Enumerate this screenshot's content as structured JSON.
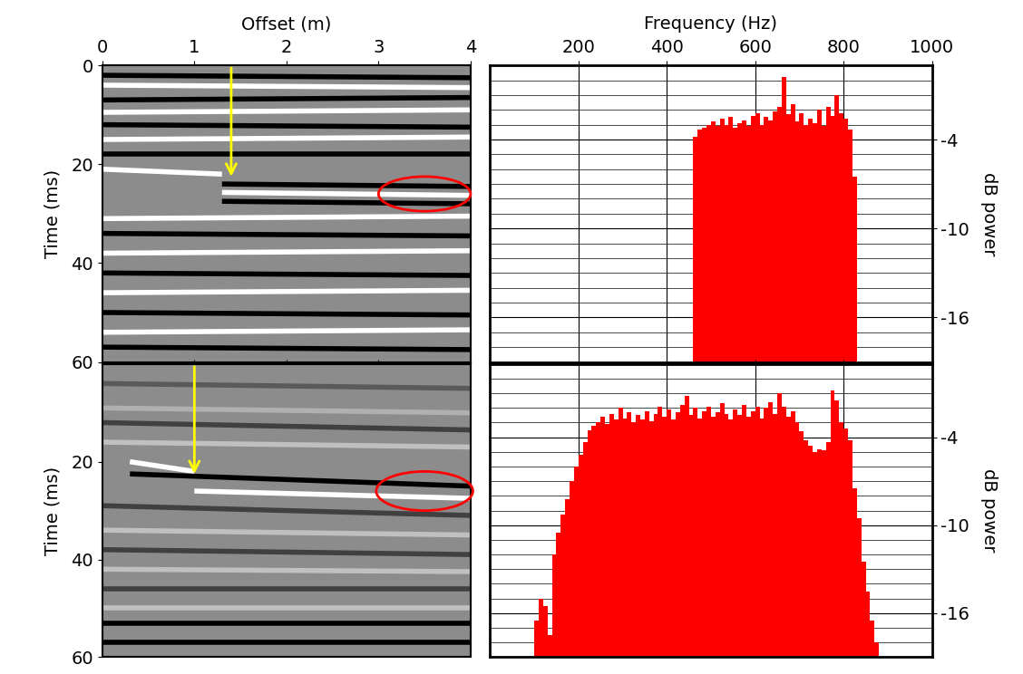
{
  "chart_data": [
    {
      "type": "seismic",
      "x_label": "Offset (m)",
      "y_label": "Time (ms)",
      "xlim": [
        0,
        4
      ],
      "ylim": [
        60,
        0
      ],
      "xticks": [
        0,
        1,
        2,
        3,
        4
      ],
      "yticks": [
        0,
        20,
        40,
        60
      ],
      "color": "#8c8c8c",
      "grid": false,
      "tick_labels": true,
      "events": [
        {
          "x": [
            0,
            4
          ],
          "y": [
            2,
            2.5
          ],
          "color": "#000000"
        },
        {
          "x": [
            0,
            4
          ],
          "y": [
            4,
            4.5
          ],
          "color": "#ffffff"
        },
        {
          "x": [
            0,
            4
          ],
          "y": [
            7,
            6.5
          ],
          "color": "#000000"
        },
        {
          "x": [
            0,
            4
          ],
          "y": [
            9.5,
            9
          ],
          "color": "#ffffff"
        },
        {
          "x": [
            0,
            4
          ],
          "y": [
            12,
            12.5
          ],
          "color": "#000000"
        },
        {
          "x": [
            0,
            4
          ],
          "y": [
            15,
            14.5
          ],
          "color": "#ffffff"
        },
        {
          "x": [
            0,
            4
          ],
          "y": [
            18,
            18
          ],
          "color": "#000000"
        },
        {
          "x": [
            0,
            1.3
          ],
          "y": [
            21,
            22
          ],
          "color": "#ffffff"
        },
        {
          "x": [
            1.3,
            4
          ],
          "y": [
            24,
            24.5
          ],
          "color": "#000000"
        },
        {
          "x": [
            1.3,
            4
          ],
          "y": [
            25.7,
            26.3
          ],
          "color": "#ffffff"
        },
        {
          "x": [
            1.3,
            4
          ],
          "y": [
            27.5,
            28
          ],
          "color": "#000000"
        },
        {
          "x": [
            0,
            4
          ],
          "y": [
            31,
            30.5
          ],
          "color": "#ffffff"
        },
        {
          "x": [
            0,
            4
          ],
          "y": [
            34,
            34.5
          ],
          "color": "#000000"
        },
        {
          "x": [
            0,
            4
          ],
          "y": [
            38,
            37.5
          ],
          "color": "#ffffff"
        },
        {
          "x": [
            0,
            4
          ],
          "y": [
            42,
            42.5
          ],
          "color": "#000000"
        },
        {
          "x": [
            0,
            4
          ],
          "y": [
            46,
            45.5
          ],
          "color": "#ffffff"
        },
        {
          "x": [
            0,
            4
          ],
          "y": [
            50,
            50.5
          ],
          "color": "#000000"
        },
        {
          "x": [
            0,
            4
          ],
          "y": [
            54,
            53.5
          ],
          "color": "#ffffff"
        },
        {
          "x": [
            0,
            4
          ],
          "y": [
            57,
            57.5
          ],
          "color": "#000000"
        }
      ],
      "annotations": [
        {
          "type": "arrow",
          "x": 1.4,
          "y": [
            0,
            23
          ],
          "color": "#ffff00"
        },
        {
          "type": "ellipse",
          "x": 3.5,
          "y": 26,
          "width": 1.0,
          "height": 7,
          "color": "#ff0000"
        }
      ]
    },
    {
      "type": "histogram",
      "x_label": "Frequency (Hz)",
      "y_label": "dB power",
      "xlim": [
        0,
        1000
      ],
      "ylim": [
        -19,
        1
      ],
      "xticks": [
        200,
        400,
        600,
        800,
        1000
      ],
      "yticks": [
        -4,
        -10,
        -16
      ],
      "color": "#ff0000",
      "grid": true,
      "tick_labels": true,
      "bins": [
        460,
        470,
        480,
        490,
        500,
        510,
        520,
        530,
        540,
        550,
        560,
        570,
        580,
        590,
        600,
        610,
        620,
        630,
        640,
        650,
        660,
        670,
        680,
        690,
        700,
        710,
        720,
        730,
        740,
        750,
        760,
        770,
        780,
        790,
        800,
        810,
        820,
        830
      ],
      "values": [
        -3.8,
        -3.3,
        -3.2,
        -3.0,
        -2.8,
        -3.1,
        -2.6,
        -3.0,
        -2.5,
        -3.2,
        -2.9,
        -2.7,
        -3.1,
        -2.4,
        -2.2,
        -3.0,
        -2.5,
        -2.7,
        -2.1,
        -1.8,
        0.2,
        -2.3,
        -1.6,
        -2.8,
        -2.2,
        -3.0,
        -2.6,
        -2.9,
        -2.0,
        -3.1,
        -1.8,
        -2.4,
        -1.0,
        -2.2,
        -2.6,
        -3.3,
        -6.5
      ]
    },
    {
      "type": "seismic",
      "y_label": "Time (ms)",
      "xlim": [
        0,
        4
      ],
      "ylim": [
        60,
        0
      ],
      "xticks": [
        0,
        1,
        2,
        3,
        4
      ],
      "yticks": [
        20,
        40,
        60
      ],
      "color": "#8c8c8c",
      "grid": false,
      "tick_labels": "y",
      "events": [
        {
          "x": [
            0,
            4
          ],
          "y": [
            4,
            5
          ],
          "color": "#5a5a5a"
        },
        {
          "x": [
            0,
            4
          ],
          "y": [
            9,
            10
          ],
          "color": "#b0b0b0"
        },
        {
          "x": [
            0,
            4
          ],
          "y": [
            12,
            13.5
          ],
          "color": "#404040"
        },
        {
          "x": [
            0,
            4
          ],
          "y": [
            16,
            17
          ],
          "color": "#c0c0c0"
        },
        {
          "x": [
            0.3,
            1.0
          ],
          "y": [
            20,
            22
          ],
          "color": "#ffffff"
        },
        {
          "x": [
            0.3,
            4
          ],
          "y": [
            22.5,
            25
          ],
          "color": "#000000"
        },
        {
          "x": [
            1.0,
            4
          ],
          "y": [
            26,
            27.5
          ],
          "color": "#ffffff"
        },
        {
          "x": [
            0,
            4
          ],
          "y": [
            29,
            31
          ],
          "color": "#404040"
        },
        {
          "x": [
            0,
            4
          ],
          "y": [
            34,
            35
          ],
          "color": "#c0c0c0"
        },
        {
          "x": [
            0,
            4
          ],
          "y": [
            38,
            39
          ],
          "color": "#404040"
        },
        {
          "x": [
            0,
            4
          ],
          "y": [
            42,
            42.5
          ],
          "color": "#c0c0c0"
        },
        {
          "x": [
            0,
            4
          ],
          "y": [
            46,
            46
          ],
          "color": "#404040"
        },
        {
          "x": [
            0,
            4
          ],
          "y": [
            50,
            50
          ],
          "color": "#c0c0c0"
        },
        {
          "x": [
            0,
            4
          ],
          "y": [
            53,
            53
          ],
          "color": "#000000"
        },
        {
          "x": [
            0,
            4
          ],
          "y": [
            57,
            57
          ],
          "color": "#000000"
        }
      ],
      "annotations": [
        {
          "type": "arrow",
          "x": 1.0,
          "y": [
            0,
            23
          ],
          "color": "#ffff00"
        },
        {
          "type": "ellipse",
          "x": 3.5,
          "y": 26,
          "width": 1.05,
          "height": 8,
          "color": "#ff0000"
        }
      ]
    },
    {
      "type": "histogram",
      "y_label": "dB power",
      "xlim": [
        0,
        1000
      ],
      "ylim": [
        -19,
        1
      ],
      "xticks": [
        200,
        400,
        600,
        800,
        1000
      ],
      "yticks": [
        -4,
        -10,
        -16
      ],
      "color": "#ff0000",
      "grid": true,
      "tick_labels": "y",
      "bins": [
        100,
        110,
        120,
        130,
        140,
        150,
        160,
        170,
        180,
        190,
        200,
        210,
        220,
        230,
        240,
        250,
        260,
        270,
        280,
        290,
        300,
        310,
        320,
        330,
        340,
        350,
        360,
        370,
        380,
        390,
        400,
        410,
        420,
        430,
        440,
        450,
        460,
        470,
        480,
        490,
        500,
        510,
        520,
        530,
        540,
        550,
        560,
        570,
        580,
        590,
        600,
        610,
        620,
        630,
        640,
        650,
        660,
        670,
        680,
        690,
        700,
        710,
        720,
        730,
        740,
        750,
        760,
        770,
        780,
        790,
        800,
        810,
        820,
        830,
        840,
        850,
        860,
        870,
        880
      ],
      "values": [
        -16.5,
        -15.0,
        -15.5,
        -17.5,
        -12.0,
        -10.5,
        -9.3,
        -8.2,
        -7.0,
        -6.0,
        -5.2,
        -4.3,
        -3.5,
        -3.2,
        -3.0,
        -2.6,
        -3.1,
        -2.4,
        -2.8,
        -2.0,
        -2.7,
        -2.3,
        -3.0,
        -2.5,
        -2.8,
        -2.2,
        -2.9,
        -2.4,
        -1.9,
        -2.6,
        -2.1,
        -2.8,
        -2.3,
        -1.8,
        -1.2,
        -2.5,
        -2.0,
        -2.7,
        -2.2,
        -1.9,
        -2.6,
        -2.3,
        -1.7,
        -2.4,
        -2.8,
        -2.1,
        -2.5,
        -1.8,
        -2.6,
        -2.2,
        -1.9,
        -2.7,
        -2.0,
        -1.6,
        -2.4,
        -1.0,
        -1.9,
        -2.6,
        -2.2,
        -3.0,
        -3.6,
        -4.2,
        -4.6,
        -5.0,
        -4.8,
        -4.9,
        -4.3,
        -0.8,
        -1.5,
        -3.0,
        -3.4,
        -4.2,
        -7.5,
        -9.5,
        -12.5,
        -14.5,
        -16.5,
        -18.0
      ]
    }
  ]
}
